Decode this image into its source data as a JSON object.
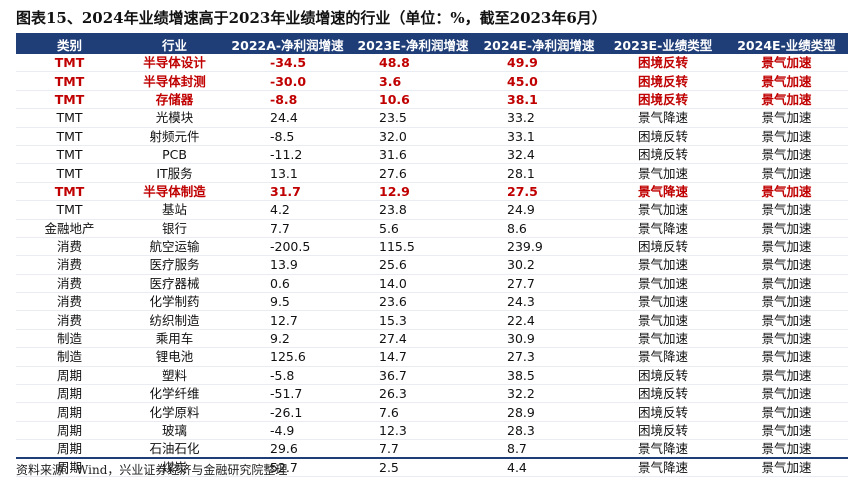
{
  "title": "图表15、2024年业绩增速高于2023年业绩增速的行业（单位：%，截至2023年6月）",
  "headers": [
    "类别",
    "行业",
    "2022A-净利润增速",
    "2023E-净利润增速",
    "2024E-净利润增速",
    "2023E-业绩类型",
    "2024E-业绩类型"
  ],
  "rows": [
    {
      "cat": "TMT",
      "ind": "半导体设计",
      "g22": "-34.5",
      "g23": "48.8",
      "g24": "49.9",
      "t23": "困境反转",
      "t24": "景气加速",
      "hl": true
    },
    {
      "cat": "TMT",
      "ind": "半导体封测",
      "g22": "-30.0",
      "g23": "3.6",
      "g24": "45.0",
      "t23": "困境反转",
      "t24": "景气加速",
      "hl": true
    },
    {
      "cat": "TMT",
      "ind": "存储器",
      "g22": "-8.8",
      "g23": "10.6",
      "g24": "38.1",
      "t23": "困境反转",
      "t24": "景气加速",
      "hl": true
    },
    {
      "cat": "TMT",
      "ind": "光模块",
      "g22": "24.4",
      "g23": "23.5",
      "g24": "33.2",
      "t23": "景气降速",
      "t24": "景气加速",
      "hl": false
    },
    {
      "cat": "TMT",
      "ind": "射频元件",
      "g22": "-8.5",
      "g23": "32.0",
      "g24": "33.1",
      "t23": "困境反转",
      "t24": "景气加速",
      "hl": false
    },
    {
      "cat": "TMT",
      "ind": "PCB",
      "g22": "-11.2",
      "g23": "31.6",
      "g24": "32.4",
      "t23": "困境反转",
      "t24": "景气加速",
      "hl": false
    },
    {
      "cat": "TMT",
      "ind": "IT服务",
      "g22": "13.1",
      "g23": "27.6",
      "g24": "28.1",
      "t23": "景气加速",
      "t24": "景气加速",
      "hl": false
    },
    {
      "cat": "TMT",
      "ind": "半导体制造",
      "g22": "31.7",
      "g23": "12.9",
      "g24": "27.5",
      "t23": "景气降速",
      "t24": "景气加速",
      "hl": true
    },
    {
      "cat": "TMT",
      "ind": "基站",
      "g22": "4.2",
      "g23": "23.8",
      "g24": "24.9",
      "t23": "景气加速",
      "t24": "景气加速",
      "hl": false
    },
    {
      "cat": "金融地产",
      "ind": "银行",
      "g22": "7.7",
      "g23": "5.6",
      "g24": "8.6",
      "t23": "景气降速",
      "t24": "景气加速",
      "hl": false
    },
    {
      "cat": "消费",
      "ind": "航空运输",
      "g22": "-200.5",
      "g23": "115.5",
      "g24": "239.9",
      "t23": "困境反转",
      "t24": "景气加速",
      "hl": false
    },
    {
      "cat": "消费",
      "ind": "医疗服务",
      "g22": "13.9",
      "g23": "25.6",
      "g24": "30.2",
      "t23": "景气加速",
      "t24": "景气加速",
      "hl": false
    },
    {
      "cat": "消费",
      "ind": "医疗器械",
      "g22": "0.6",
      "g23": "14.0",
      "g24": "27.7",
      "t23": "景气加速",
      "t24": "景气加速",
      "hl": false
    },
    {
      "cat": "消费",
      "ind": "化学制药",
      "g22": "9.5",
      "g23": "23.6",
      "g24": "24.3",
      "t23": "景气加速",
      "t24": "景气加速",
      "hl": false
    },
    {
      "cat": "消费",
      "ind": "纺织制造",
      "g22": "12.7",
      "g23": "15.3",
      "g24": "22.4",
      "t23": "景气加速",
      "t24": "景气加速",
      "hl": false
    },
    {
      "cat": "制造",
      "ind": "乘用车",
      "g22": "9.2",
      "g23": "27.4",
      "g24": "30.9",
      "t23": "景气加速",
      "t24": "景气加速",
      "hl": false
    },
    {
      "cat": "制造",
      "ind": "锂电池",
      "g22": "125.6",
      "g23": "14.7",
      "g24": "27.3",
      "t23": "景气降速",
      "t24": "景气加速",
      "hl": false
    },
    {
      "cat": "周期",
      "ind": "塑料",
      "g22": "-5.8",
      "g23": "36.7",
      "g24": "38.5",
      "t23": "困境反转",
      "t24": "景气加速",
      "hl": false
    },
    {
      "cat": "周期",
      "ind": "化学纤维",
      "g22": "-51.7",
      "g23": "26.3",
      "g24": "32.2",
      "t23": "困境反转",
      "t24": "景气加速",
      "hl": false
    },
    {
      "cat": "周期",
      "ind": "化学原料",
      "g22": "-26.1",
      "g23": "7.6",
      "g24": "28.9",
      "t23": "困境反转",
      "t24": "景气加速",
      "hl": false
    },
    {
      "cat": "周期",
      "ind": "玻璃",
      "g22": "-4.9",
      "g23": "12.3",
      "g24": "28.3",
      "t23": "困境反转",
      "t24": "景气加速",
      "hl": false
    },
    {
      "cat": "周期",
      "ind": "石油石化",
      "g22": "29.6",
      "g23": "7.7",
      "g24": "8.7",
      "t23": "景气降速",
      "t24": "景气加速",
      "hl": false
    },
    {
      "cat": "周期",
      "ind": "煤炭",
      "g22": "52.7",
      "g23": "2.5",
      "g24": "4.4",
      "t23": "景气降速",
      "t24": "景气加速",
      "hl": false
    }
  ],
  "source": "资料来源：Wind，兴业证券经济与金融研究院整理",
  "colors": {
    "header_bg": "#1f3e78",
    "highlight": "#c00000"
  }
}
